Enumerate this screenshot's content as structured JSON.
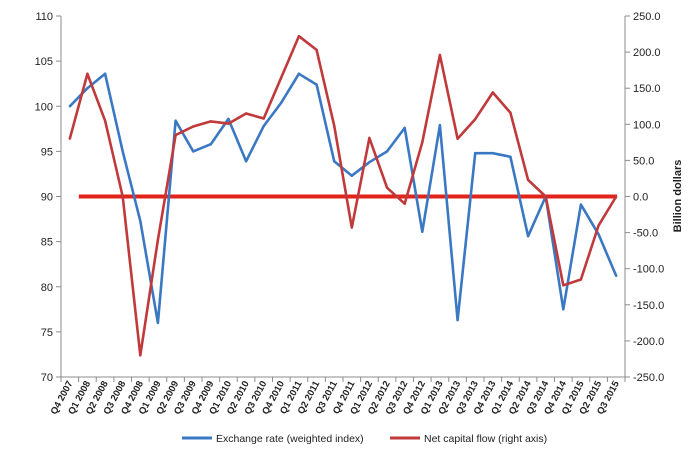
{
  "chart_data": {
    "type": "line",
    "categories": [
      "Q4 2007",
      "Q1 2008",
      "Q2 2008",
      "Q3 2008",
      "Q4 2008",
      "Q1 2009",
      "Q2 2009",
      "Q3 2009",
      "Q4 2009",
      "Q1 2010",
      "Q2 2010",
      "Q3 2010",
      "Q4 2010",
      "Q1 2011",
      "Q2 2011",
      "Q3 2011",
      "Q4 2011",
      "Q1 2012",
      "Q2 2012",
      "Q3 2012",
      "Q4 2012",
      "Q1 2013",
      "Q2 2013",
      "Q3 2013",
      "Q4 2013",
      "Q1 2014",
      "Q2 2014",
      "Q3 2014",
      "Q4 2014",
      "Q1 2015",
      "Q2 2015",
      "Q3 2015"
    ],
    "left_axis": {
      "label": "",
      "min": 70,
      "max": 110,
      "ticks": [
        "110",
        "105",
        "100",
        "95",
        "90",
        "85",
        "80",
        "75",
        "70"
      ]
    },
    "right_axis": {
      "label": "Billion dollars",
      "min": -250,
      "max": 250,
      "ticks": [
        "250.0",
        "200.0",
        "150.0",
        "100.0",
        "50.0",
        "0.0",
        "-50.0",
        "-100.0",
        "-150.0",
        "-200.0",
        "-250.0"
      ]
    },
    "series": [
      {
        "name": "Exchange rate (weighted index)",
        "axis": "left",
        "color": "#3a78c3",
        "values": [
          100.0,
          102.0,
          103.6,
          95.0,
          87.3,
          76.0,
          98.4,
          95.0,
          95.8,
          98.6,
          93.9,
          97.8,
          100.4,
          103.6,
          102.4,
          93.9,
          92.3,
          93.8,
          95.0,
          97.6,
          86.1,
          97.9,
          76.3,
          94.8,
          94.8,
          94.4,
          85.6,
          90.0,
          77.5,
          89.1,
          85.8,
          81.2
        ]
      },
      {
        "name": "Net capital flow (right axis)",
        "axis": "right",
        "color": "#c0393b",
        "values": [
          80,
          170,
          105,
          0,
          -220,
          -60,
          85,
          97,
          104,
          101,
          115,
          108,
          165,
          222,
          203,
          98,
          -43,
          81,
          12,
          -10,
          75,
          196,
          80,
          107,
          144,
          116,
          23,
          0,
          -123,
          -115,
          -40,
          0
        ]
      }
    ],
    "legend": {
      "position": "bottom"
    },
    "grid": false
  }
}
